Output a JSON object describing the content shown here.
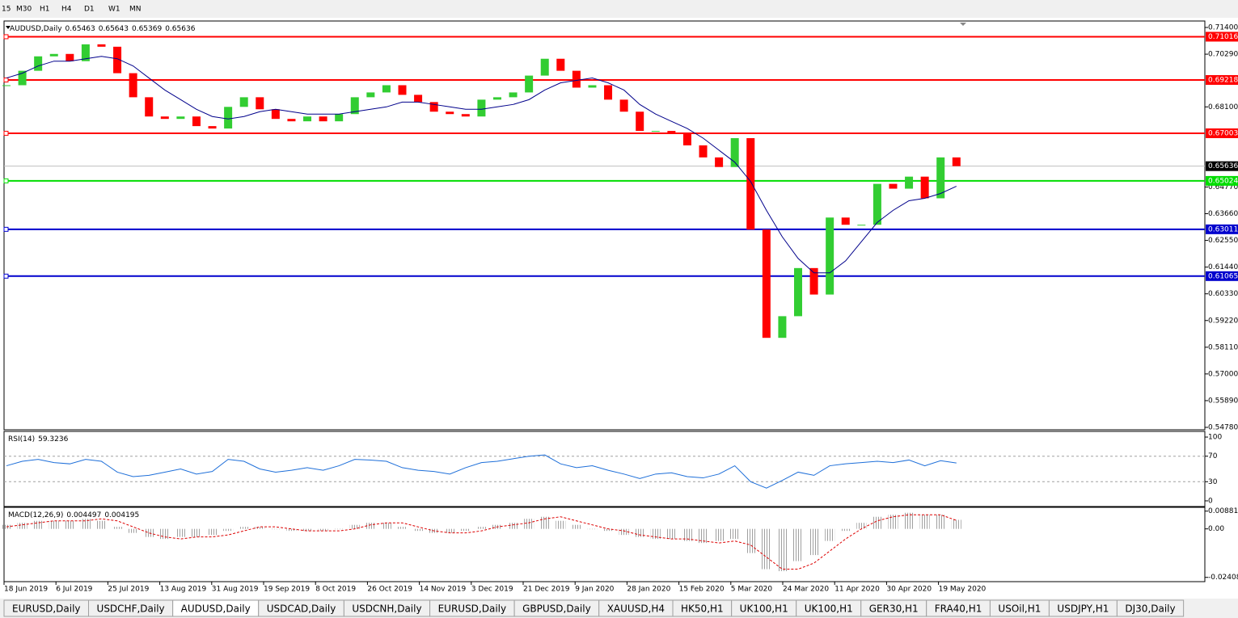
{
  "toolbar": {
    "timeframes": [
      "15",
      "M30",
      "H1",
      "H4",
      "D1",
      "W1",
      "MN"
    ]
  },
  "tabs": [
    "EURUSD,Daily",
    "USDCHF,Daily",
    "AUDUSD,Daily",
    "USDCAD,Daily",
    "USDCNH,Daily",
    "EURUSD,Daily",
    "GBPUSD,Daily",
    "XAUUSD,H4",
    "HK50,H1",
    "UK100,H1",
    "UK100,H1",
    "GER30,H1",
    "FRA40,H1",
    "USOil,H1",
    "USDJPY,H1",
    "DJ30,Daily"
  ],
  "active_tab": 2,
  "chart_data": [
    {
      "type": "candlestick",
      "title": "AUDUSD,Daily",
      "ohlc_last": [
        0.65463,
        0.65643,
        0.65369,
        0.65636
      ],
      "up_color": "#32cd32",
      "down_color": "#ff0000",
      "closes": [
        0.69,
        0.696,
        0.702,
        0.703,
        0.7,
        0.707,
        0.706,
        0.695,
        0.685,
        0.677,
        0.676,
        0.677,
        0.673,
        0.672,
        0.681,
        0.685,
        0.68,
        0.676,
        0.675,
        0.677,
        0.675,
        0.678,
        0.685,
        0.687,
        0.69,
        0.686,
        0.683,
        0.679,
        0.678,
        0.677,
        0.684,
        0.685,
        0.687,
        0.694,
        0.701,
        0.696,
        0.689,
        0.69,
        0.684,
        0.679,
        0.671,
        0.671,
        0.67,
        0.665,
        0.66,
        0.656,
        0.668,
        0.63,
        0.585,
        0.594,
        0.614,
        0.603,
        0.635,
        0.632,
        0.632,
        0.649,
        0.647,
        0.652,
        0.643,
        0.66,
        0.65636
      ],
      "moving_average": {
        "color": "#00008b",
        "values": [
          0.693,
          0.695,
          0.698,
          0.7,
          0.7,
          0.701,
          0.702,
          0.701,
          0.698,
          0.693,
          0.688,
          0.684,
          0.68,
          0.677,
          0.676,
          0.677,
          0.679,
          0.68,
          0.679,
          0.678,
          0.678,
          0.678,
          0.679,
          0.68,
          0.681,
          0.683,
          0.683,
          0.682,
          0.681,
          0.68,
          0.68,
          0.681,
          0.682,
          0.684,
          0.688,
          0.691,
          0.692,
          0.693,
          0.691,
          0.688,
          0.682,
          0.678,
          0.675,
          0.672,
          0.668,
          0.663,
          0.658,
          0.65,
          0.638,
          0.627,
          0.618,
          0.612,
          0.612,
          0.617,
          0.625,
          0.633,
          0.638,
          0.642,
          0.643,
          0.645,
          0.648
        ]
      },
      "levels": [
        {
          "value": 0.71016,
          "color": "#ff0000"
        },
        {
          "value": 0.69218,
          "color": "#ff0000"
        },
        {
          "value": 0.67003,
          "color": "#ff0000"
        },
        {
          "value": 0.65024,
          "color": "#00dd00"
        },
        {
          "value": 0.63011,
          "color": "#0000cd"
        },
        {
          "value": 0.61065,
          "color": "#0000cd"
        }
      ],
      "ylim": [
        0.54679,
        0.71669
      ],
      "yticks": [
        {
          "value": 0.714,
          "label": "0.71400"
        },
        {
          "value": 0.7029,
          "label": "0.70290"
        },
        {
          "value": 0.681,
          "label": "0.68100"
        },
        {
          "value": 0.6477,
          "label": "0.64770"
        },
        {
          "value": 0.6366,
          "label": "0.63660"
        },
        {
          "value": 0.6255,
          "label": "0.62550"
        },
        {
          "value": 0.6144,
          "label": "0.61440"
        },
        {
          "value": 0.6033,
          "label": "0.60330"
        },
        {
          "value": 0.5922,
          "label": "0.59220"
        },
        {
          "value": 0.5811,
          "label": "0.58110"
        },
        {
          "value": 0.57,
          "label": "0.57000"
        },
        {
          "value": 0.5589,
          "label": "0.55890"
        },
        {
          "value": 0.5478,
          "label": "0.54780"
        }
      ],
      "dates": [
        "18 Jun 2019",
        "6 Jul 2019",
        "25 Jul 2019",
        "13 Aug 2019",
        "31 Aug 2019",
        "19 Sep 2019",
        "8 Oct 2019",
        "26 Oct 2019",
        "14 Nov 2019",
        "3 Dec 2019",
        "21 Dec 2019",
        "9 Jan 2020",
        "28 Jan 2020",
        "15 Feb 2020",
        "5 Mar 2020",
        "24 Mar 2020",
        "11 Apr 2020",
        "30 Apr 2020",
        "19 May 2020"
      ]
    },
    {
      "type": "line",
      "title": "RSI(14)",
      "color": "#1e6fd9",
      "values": [
        55,
        62,
        65,
        60,
        58,
        65,
        62,
        45,
        38,
        40,
        45,
        50,
        42,
        46,
        65,
        62,
        50,
        45,
        48,
        52,
        48,
        55,
        65,
        64,
        62,
        52,
        48,
        46,
        42,
        52,
        60,
        62,
        66,
        70,
        72,
        58,
        52,
        55,
        48,
        42,
        35,
        42,
        44,
        38,
        36,
        42,
        55,
        30,
        20,
        32,
        45,
        40,
        55,
        58,
        60,
        62,
        60,
        64,
        55,
        63,
        59.3236
      ],
      "ylim": [
        -8.9,
        108.9
      ],
      "yticks": [
        100,
        70,
        30,
        0
      ]
    },
    {
      "type": "bar",
      "title": "MACD(12,26,9)",
      "color": "#a0a0a0",
      "signal_color": "#dd0000",
      "values": [
        0.002,
        0.003,
        0.004,
        0.004,
        0.004,
        0.005,
        0.004,
        0.001,
        -0.002,
        -0.004,
        -0.005,
        -0.004,
        -0.004,
        -0.003,
        -0.001,
        0.001,
        0.001,
        0,
        -0.001,
        -0.001,
        -0.001,
        0,
        0.002,
        0.003,
        0.003,
        0.001,
        -0.001,
        -0.002,
        -0.002,
        -0.001,
        0.001,
        0.002,
        0.003,
        0.005,
        0.006,
        0.004,
        0.002,
        0,
        -0.001,
        -0.003,
        -0.004,
        -0.005,
        -0.005,
        -0.006,
        -0.007,
        -0.006,
        -0.005,
        -0.012,
        -0.02,
        -0.021,
        -0.016,
        -0.013,
        -0.006,
        -0.001,
        0.003,
        0.006,
        0.007,
        0.008,
        0.007,
        0.007,
        0.004497
      ],
      "signal": [
        0.001,
        0.002,
        0.003,
        0.004,
        0.004,
        0.004,
        0.005,
        0.004,
        0.001,
        -0.002,
        -0.004,
        -0.005,
        -0.004,
        -0.004,
        -0.003,
        -0.001,
        0.001,
        0.001,
        0,
        -0.001,
        -0.001,
        -0.001,
        0,
        0.002,
        0.003,
        0.003,
        0.001,
        -0.001,
        -0.002,
        -0.002,
        -0.001,
        0.001,
        0.002,
        0.003,
        0.005,
        0.006,
        0.004,
        0.002,
        0,
        -0.001,
        -0.003,
        -0.004,
        -0.005,
        -0.005,
        -0.006,
        -0.007,
        -0.006,
        -0.008,
        -0.014,
        -0.02,
        -0.02,
        -0.017,
        -0.011,
        -0.005,
        0,
        0.004,
        0.006,
        0.007,
        0.007,
        0.007,
        0.004195
      ],
      "ylim": [
        -0.0262,
        0.0107
      ],
      "yticks": [
        0.008815,
        {
          "value": 0,
          "label": "0.00"
        },
        -0.02408
      ]
    }
  ]
}
